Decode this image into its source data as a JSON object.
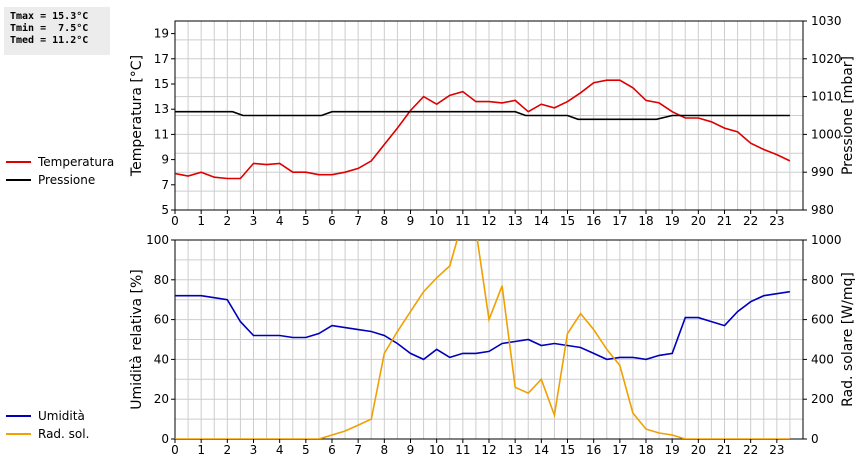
{
  "stats": [
    "Tmax = 15.3°C",
    "Tmin =  7.5°C",
    "Tmed = 11.2°C"
  ],
  "chart_data": [
    {
      "type": "line",
      "x_ticks": [
        "0",
        "1",
        "2",
        "3",
        "4",
        "5",
        "6",
        "7",
        "8",
        "9",
        "10",
        "11",
        "12",
        "13",
        "14",
        "15",
        "16",
        "17",
        "18",
        "19",
        "20",
        "21",
        "22",
        "23"
      ],
      "xlim": [
        0,
        24
      ],
      "ylabel": "Temperatura [°C]",
      "ylim": [
        5,
        20
      ],
      "yticks": [
        "5",
        "7",
        "9",
        "11",
        "13",
        "15",
        "17",
        "19"
      ],
      "y2label": "Pressione [mbar]",
      "y2lim": [
        980,
        1030
      ],
      "y2ticks": [
        "980",
        "990",
        "1000",
        "1010",
        "1020",
        "1030"
      ],
      "grid": true,
      "legend_position": "left",
      "series": [
        {
          "name": "Temperatura",
          "axis": "left",
          "color": "#dd0000",
          "x": [
            0,
            0.5,
            1,
            1.5,
            2,
            2.5,
            3,
            3.5,
            4,
            4.5,
            5,
            5.5,
            6,
            6.5,
            7,
            7.5,
            8,
            8.5,
            9,
            9.5,
            10,
            10.5,
            11,
            11.5,
            12,
            12.5,
            13,
            13.5,
            14,
            14.5,
            15,
            15.5,
            16,
            16.5,
            17,
            17.5,
            18,
            18.5,
            19,
            19.5,
            20,
            20.5,
            21,
            21.5,
            22,
            22.5,
            23,
            23.5
          ],
          "values": [
            7.9,
            7.7,
            8.0,
            7.6,
            7.5,
            7.5,
            8.7,
            8.6,
            8.7,
            8.0,
            8.0,
            7.8,
            7.8,
            8.0,
            8.3,
            8.9,
            10.2,
            11.5,
            12.9,
            14.0,
            13.4,
            14.1,
            14.4,
            13.6,
            13.6,
            13.5,
            13.7,
            12.8,
            13.4,
            13.1,
            13.6,
            14.3,
            15.1,
            15.3,
            15.3,
            14.7,
            13.7,
            13.5,
            12.8,
            12.3,
            12.3,
            12.0,
            11.5,
            11.2,
            10.3,
            9.8,
            9.4,
            8.9
          ]
        },
        {
          "name": "Pressione",
          "axis": "right",
          "color": "#000000",
          "x": [
            0,
            2.2,
            2.6,
            5.6,
            6,
            13,
            13.4,
            15,
            15.4,
            18.4,
            19,
            23.5
          ],
          "values": [
            1006,
            1006,
            1005,
            1005,
            1006,
            1006,
            1005,
            1005,
            1004,
            1004,
            1005,
            1005
          ]
        }
      ]
    },
    {
      "type": "line",
      "x_ticks": [
        "0",
        "1",
        "2",
        "3",
        "4",
        "5",
        "6",
        "7",
        "8",
        "9",
        "10",
        "11",
        "12",
        "13",
        "14",
        "15",
        "16",
        "17",
        "18",
        "19",
        "20",
        "21",
        "22",
        "23"
      ],
      "xlim": [
        0,
        24
      ],
      "ylabel": "Umidità relativa [%]",
      "ylim": [
        0,
        100
      ],
      "yticks": [
        "0",
        "20",
        "40",
        "60",
        "80",
        "100"
      ],
      "y2label": "Rad. solare [W/mq]",
      "y2lim": [
        0,
        1000
      ],
      "y2ticks": [
        "0",
        "200",
        "400",
        "600",
        "800",
        "1000"
      ],
      "grid": true,
      "legend_position": "left",
      "series": [
        {
          "name": "Umidità",
          "axis": "left",
          "color": "#0000bb",
          "x": [
            0,
            1,
            1.5,
            2,
            2.5,
            3,
            3.5,
            4,
            4.5,
            5,
            5.5,
            6,
            6.5,
            7,
            7.5,
            8,
            8.5,
            9,
            9.5,
            10,
            10.5,
            11,
            11.5,
            12,
            12.5,
            13,
            13.5,
            14,
            14.5,
            15,
            15.5,
            16,
            16.5,
            17,
            17.5,
            18,
            18.5,
            19,
            19.5,
            20,
            20.5,
            21,
            21.5,
            22,
            22.5,
            23,
            23.5
          ],
          "values": [
            72,
            72,
            71,
            70,
            59,
            52,
            52,
            52,
            51,
            51,
            53,
            57,
            56,
            55,
            54,
            52,
            48,
            43,
            40,
            45,
            41,
            43,
            43,
            44,
            48,
            49,
            50,
            47,
            48,
            47,
            46,
            43,
            40,
            41,
            41,
            40,
            42,
            43,
            61,
            61,
            59,
            57,
            64,
            69,
            72,
            73,
            74
          ]
        },
        {
          "name": "Rad. sol.",
          "axis": "right",
          "color": "#f0a000",
          "x": [
            0,
            5.5,
            6,
            6.5,
            7,
            7.5,
            8,
            8.5,
            9,
            9.5,
            10,
            10.5,
            11,
            11.5,
            12,
            12.5,
            13,
            13.5,
            14,
            14.5,
            15,
            15.5,
            16,
            16.5,
            17,
            17.5,
            18,
            18.5,
            19,
            19.5,
            20,
            23.5
          ],
          "values": [
            0,
            0,
            20,
            40,
            70,
            100,
            430,
            540,
            640,
            740,
            810,
            870,
            1100,
            1050,
            600,
            770,
            260,
            230,
            300,
            120,
            530,
            630,
            550,
            450,
            370,
            130,
            50,
            30,
            20,
            0,
            0,
            0
          ]
        }
      ]
    }
  ]
}
